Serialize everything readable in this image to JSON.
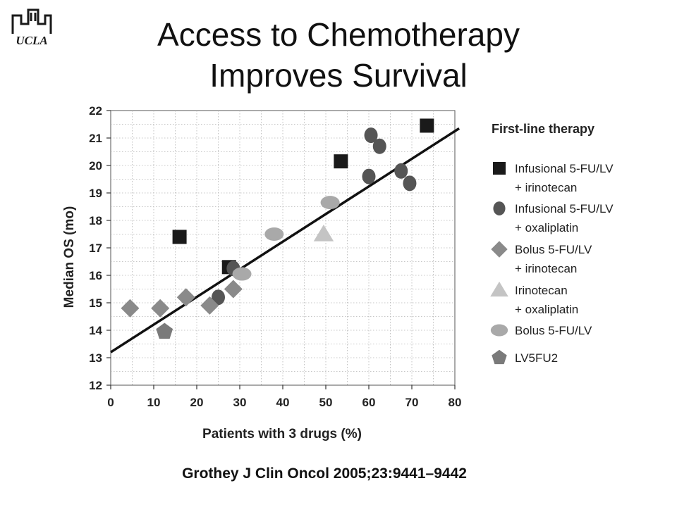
{
  "slide": {
    "title_line1": "Access to Chemotherapy",
    "title_line2": "Improves Survival",
    "logo_text": "UCLA",
    "citation": "Grothey J Clin Oncol 2005;23:9441–9442"
  },
  "chart_data": {
    "type": "scatter",
    "xlabel": "Patients with 3 drugs (%)",
    "ylabel": "Median OS (mo)",
    "xlim": [
      0,
      80
    ],
    "ylim": [
      12,
      22
    ],
    "x_ticks": [
      0,
      10,
      20,
      30,
      40,
      50,
      60,
      70,
      80
    ],
    "y_ticks": [
      12,
      13,
      14,
      15,
      16,
      17,
      18,
      19,
      20,
      21,
      22
    ],
    "grid": true,
    "legend_title": "First-line therapy",
    "legend_position": "right",
    "series": [
      {
        "name_line1": "Infusional 5-FU/LV",
        "name_line2": "+ irinotecan",
        "marker": "square",
        "color": "#1a1a1a",
        "points": [
          [
            16,
            17.4
          ],
          [
            27.5,
            16.3
          ],
          [
            53.5,
            20.15
          ],
          [
            73.5,
            21.45
          ]
        ]
      },
      {
        "name_line1": "Infusional 5-FU/LV",
        "name_line2": "+ oxaliplatin",
        "marker": "circle",
        "color": "#555555",
        "points": [
          [
            25,
            15.2
          ],
          [
            28.5,
            16.25
          ],
          [
            60,
            19.6
          ],
          [
            60.5,
            21.1
          ],
          [
            62.5,
            20.7
          ],
          [
            67.5,
            19.8
          ],
          [
            69.5,
            19.35
          ]
        ]
      },
      {
        "name_line1": "Bolus 5-FU/LV",
        "name_line2": "+ irinotecan",
        "marker": "diamond",
        "color": "#8a8a8a",
        "points": [
          [
            4.5,
            14.8
          ],
          [
            11.5,
            14.8
          ],
          [
            17.5,
            15.2
          ],
          [
            23,
            14.9
          ],
          [
            28.5,
            15.5
          ]
        ]
      },
      {
        "name_line1": "Irinotecan",
        "name_line2": "+ oxaliplatin",
        "marker": "triangle",
        "color": "#c4c4c4",
        "points": [
          [
            49.5,
            17.5
          ]
        ]
      },
      {
        "name_line1": "Bolus 5-FU/LV",
        "name_line2": "",
        "marker": "ellipse",
        "color": "#a9a9a9",
        "points": [
          [
            30.5,
            16.05
          ],
          [
            38,
            17.5
          ],
          [
            51,
            18.65
          ]
        ]
      },
      {
        "name_line1": "LV5FU2",
        "name_line2": "",
        "marker": "pentagon",
        "color": "#7a7a7a",
        "points": [
          [
            12.5,
            13.95
          ]
        ]
      }
    ],
    "trendline": {
      "x": [
        0,
        81
      ],
      "y": [
        13.2,
        21.35
      ],
      "color": "#111111"
    }
  }
}
